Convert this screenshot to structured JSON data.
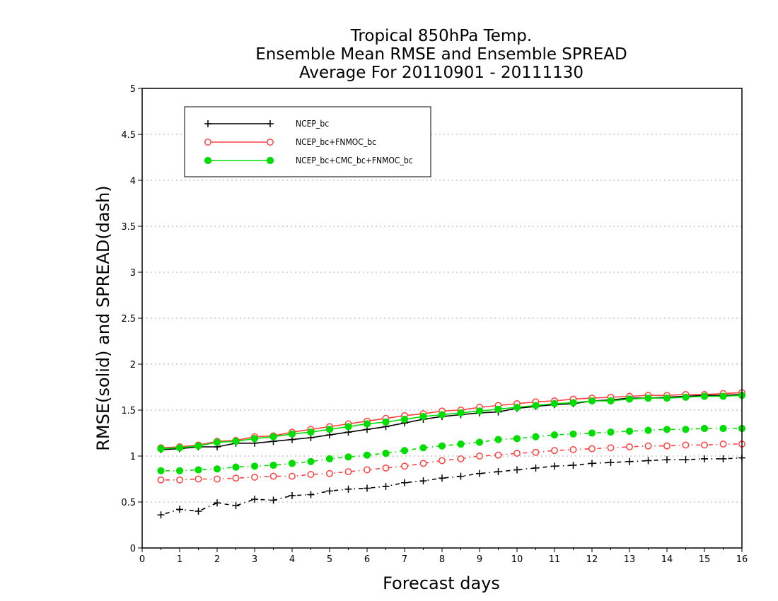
{
  "chart_data": {
    "type": "line",
    "title_lines": [
      "Tropical 850hPa Temp.",
      "Ensemble Mean RMSE and Ensemble SPREAD",
      "Average For 20110901 - 20111130"
    ],
    "xlabel": "Forecast days",
    "ylabel": "RMSE(solid) and SPREAD(dash)",
    "xlim": [
      0,
      16
    ],
    "ylim": [
      0,
      5
    ],
    "x_ticks": [
      "0",
      "1",
      "2",
      "3",
      "4",
      "5",
      "6",
      "7",
      "8",
      "9",
      "10",
      "11",
      "12",
      "13",
      "14",
      "15",
      "16"
    ],
    "y_ticks": [
      "0",
      "0.5",
      "1",
      "1.5",
      "2",
      "2.5",
      "3",
      "3.5",
      "4",
      "4.5",
      "5"
    ],
    "grid": "horizontal dotted",
    "legend_position": "top-left",
    "x": [
      0.5,
      1,
      1.5,
      2,
      2.5,
      3,
      3.5,
      4,
      4.5,
      5,
      5.5,
      6,
      6.5,
      7,
      7.5,
      8,
      8.5,
      9,
      9.5,
      10,
      10.5,
      11,
      11.5,
      12,
      12.5,
      13,
      13.5,
      14,
      14.5,
      15,
      15.5,
      16
    ],
    "series": [
      {
        "name": "NCEP_bc",
        "color": "#000000",
        "marker": "plus",
        "rmse": [
          1.07,
          1.08,
          1.1,
          1.1,
          1.14,
          1.14,
          1.16,
          1.18,
          1.2,
          1.23,
          1.26,
          1.29,
          1.32,
          1.36,
          1.4,
          1.43,
          1.45,
          1.47,
          1.48,
          1.52,
          1.54,
          1.56,
          1.57,
          1.6,
          1.61,
          1.63,
          1.63,
          1.64,
          1.65,
          1.66,
          1.66,
          1.67
        ],
        "spread": [
          0.36,
          0.42,
          0.4,
          0.49,
          0.46,
          0.53,
          0.52,
          0.57,
          0.58,
          0.62,
          0.64,
          0.65,
          0.67,
          0.71,
          0.73,
          0.76,
          0.78,
          0.81,
          0.83,
          0.85,
          0.87,
          0.89,
          0.9,
          0.92,
          0.93,
          0.94,
          0.95,
          0.96,
          0.96,
          0.97,
          0.97,
          0.98
        ]
      },
      {
        "name": "NCEP_bc+FNMOC_bc",
        "color": "#ff4040",
        "marker": "open-circle",
        "rmse": [
          1.09,
          1.1,
          1.12,
          1.16,
          1.17,
          1.21,
          1.22,
          1.26,
          1.29,
          1.32,
          1.35,
          1.38,
          1.41,
          1.44,
          1.46,
          1.49,
          1.5,
          1.53,
          1.55,
          1.57,
          1.59,
          1.6,
          1.62,
          1.63,
          1.64,
          1.65,
          1.66,
          1.66,
          1.67,
          1.67,
          1.68,
          1.69
        ],
        "spread": [
          0.74,
          0.74,
          0.75,
          0.75,
          0.76,
          0.77,
          0.78,
          0.78,
          0.8,
          0.81,
          0.83,
          0.85,
          0.87,
          0.89,
          0.92,
          0.95,
          0.97,
          1.0,
          1.01,
          1.03,
          1.04,
          1.06,
          1.07,
          1.08,
          1.09,
          1.1,
          1.11,
          1.11,
          1.12,
          1.12,
          1.13,
          1.13
        ]
      },
      {
        "name": "NCEP_bc+CMC_bc+FNMOC_bc",
        "color": "#00dd00",
        "marker": "filled-circle",
        "rmse": [
          1.08,
          1.09,
          1.11,
          1.15,
          1.16,
          1.19,
          1.21,
          1.24,
          1.26,
          1.29,
          1.32,
          1.35,
          1.37,
          1.4,
          1.43,
          1.45,
          1.47,
          1.49,
          1.51,
          1.53,
          1.55,
          1.57,
          1.58,
          1.6,
          1.6,
          1.62,
          1.63,
          1.63,
          1.64,
          1.65,
          1.65,
          1.66
        ],
        "spread": [
          0.84,
          0.84,
          0.85,
          0.86,
          0.88,
          0.89,
          0.9,
          0.92,
          0.94,
          0.97,
          0.99,
          1.01,
          1.03,
          1.06,
          1.09,
          1.11,
          1.13,
          1.15,
          1.18,
          1.19,
          1.21,
          1.23,
          1.24,
          1.25,
          1.26,
          1.27,
          1.28,
          1.29,
          1.29,
          1.3,
          1.3,
          1.3
        ]
      }
    ]
  }
}
